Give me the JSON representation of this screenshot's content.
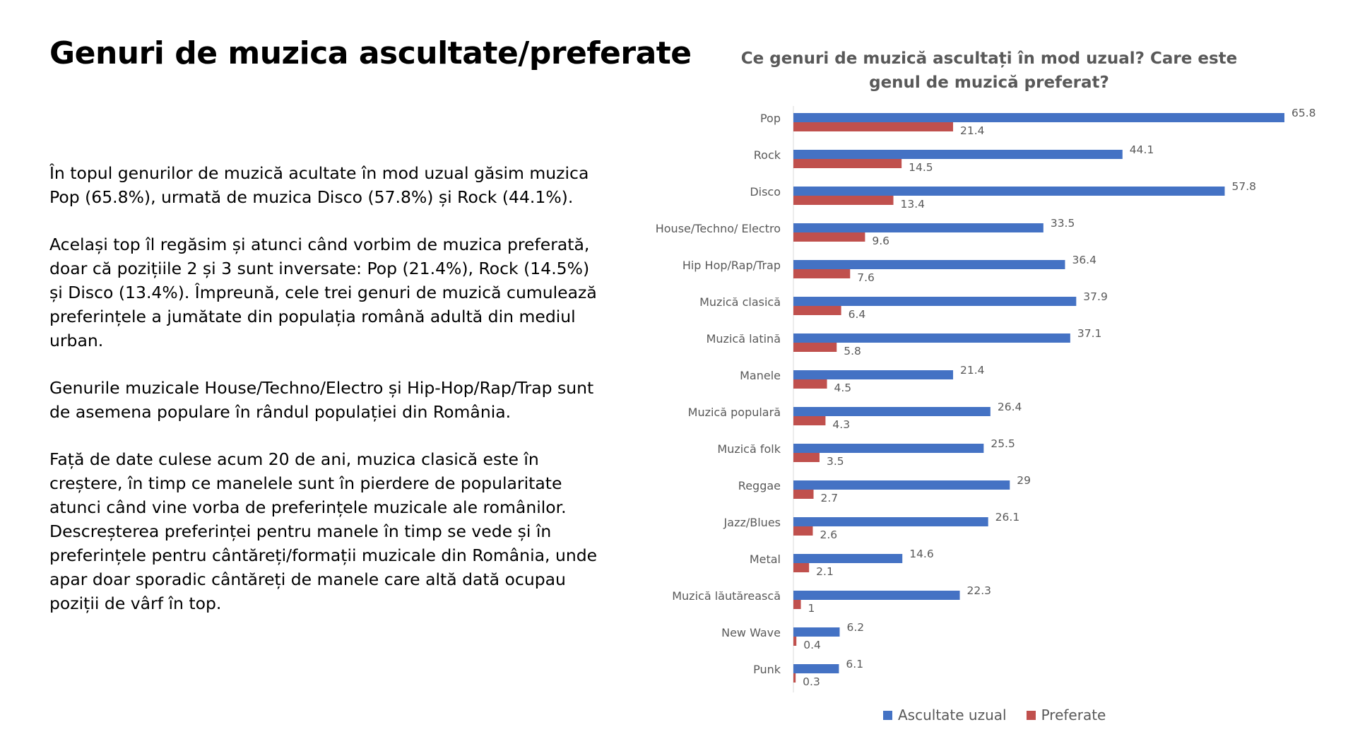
{
  "slide": {
    "title": "Genuri de muzica ascultate/preferate",
    "paragraphs": [
      "În topul genurilor de muzică acultate în mod uzual găsim muzica Pop (65.8%), urmată de muzica Disco (57.8%)  și Rock (44.1%).",
      "Același top îl regăsim și atunci când vorbim de muzica preferată, doar că pozițiile 2 și 3 sunt inversate: Pop (21.4%), Rock (14.5%) și Disco (13.4%). Împreună, cele trei genuri de muzică cumulează preferințele a jumătate din populația română adultă din mediul urban.",
      "Genurile muzicale House/Techno/Electro și Hip-Hop/Rap/Trap sunt de asemena populare în rândul populației din România.",
      "Față de date culese acum 20 de ani, muzica clasică este în creștere, în timp ce manelele sunt în pierdere de popularitate atunci când vine vorba de preferințele muzicale ale românilor. Descreșterea preferinței pentru manele în timp se vede și în preferințele pentru cântăreți/formații muzicale din România, unde apar doar sporadic cântăreți de manele care altă dată ocupau poziții de vârf în top."
    ]
  },
  "chart_data": {
    "type": "bar",
    "orientation": "horizontal",
    "title": "Ce genuri de muzică ascultați în mod uzual? Care este genul de muzică preferat?",
    "categories": [
      "Pop",
      "Rock",
      "Disco",
      "House/Techno/ Electro",
      "Hip Hop/Rap/Trap",
      "Muzică clasică",
      "Muzică latină",
      "Manele",
      "Muzică populară",
      "Muzică folk",
      "Reggae",
      "Jazz/Blues",
      "Metal",
      "Muzică lăutărească",
      "New Wave",
      "Punk"
    ],
    "series": [
      {
        "name": "Ascultate uzual",
        "color": "#4472C4",
        "values": [
          65.8,
          44.1,
          57.8,
          33.5,
          36.4,
          37.9,
          37.1,
          21.4,
          26.4,
          25.5,
          29,
          26.1,
          14.6,
          22.3,
          6.2,
          6.1
        ]
      },
      {
        "name": "Preferate",
        "color": "#C0504D",
        "values": [
          21.4,
          14.5,
          13.4,
          9.6,
          7.6,
          6.4,
          5.8,
          4.5,
          4.3,
          3.5,
          2.7,
          2.6,
          2.1,
          1,
          0.4,
          0.3
        ]
      }
    ],
    "xlim": [
      0,
      70
    ],
    "grid": false,
    "legend": "bottom"
  }
}
